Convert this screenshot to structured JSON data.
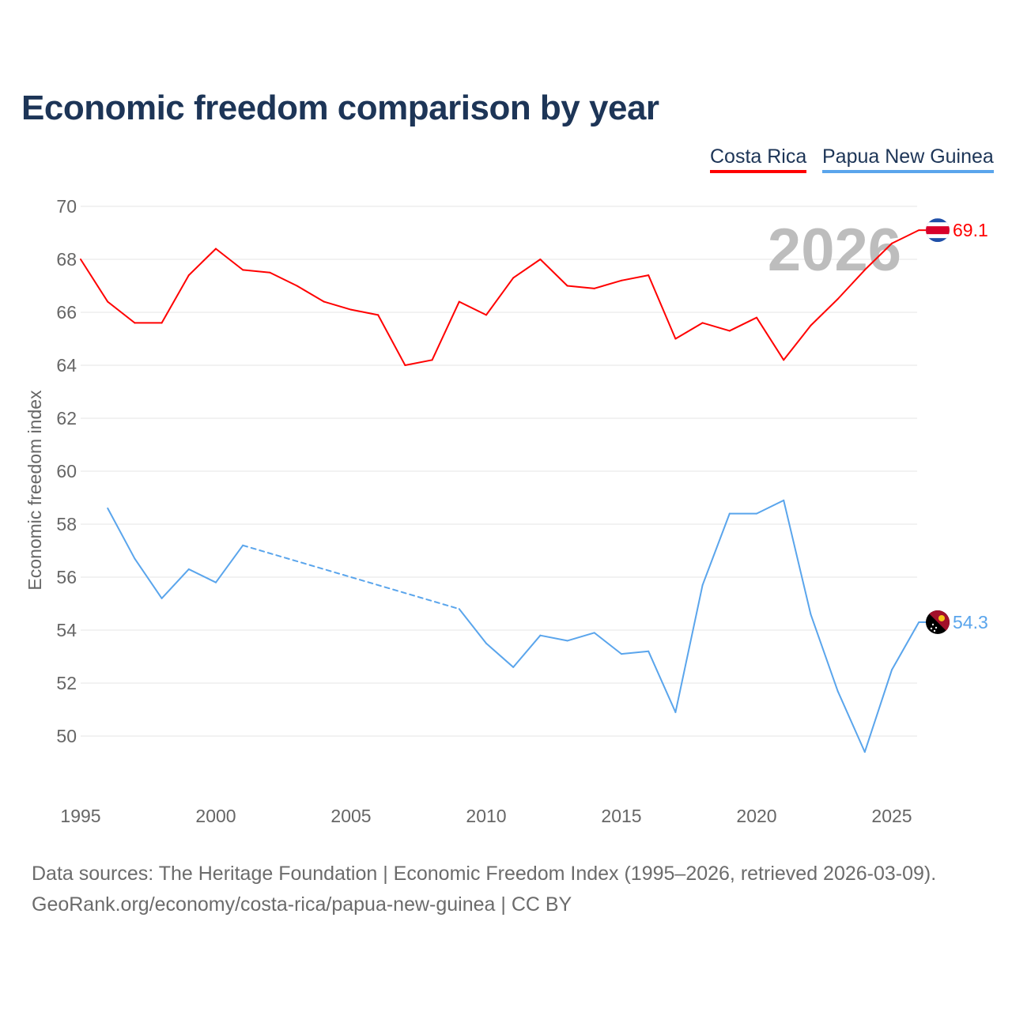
{
  "chart_data": {
    "type": "line",
    "title": "Economic freedom comparison by year",
    "xlabel": "",
    "ylabel": "Economic freedom index",
    "xlim": [
      1995,
      2026
    ],
    "ylim": [
      48,
      70
    ],
    "x_ticks": [
      1995,
      2000,
      2005,
      2010,
      2015,
      2020,
      2025
    ],
    "y_ticks": [
      50,
      52,
      54,
      56,
      58,
      60,
      62,
      64,
      66,
      68,
      70
    ],
    "grid": true,
    "legend_placement": "top-right",
    "watermark_year": "2026",
    "series": [
      {
        "name": "Costa Rica",
        "color": "#ff0000",
        "end_label": "69.1",
        "flag": "costa-rica",
        "x": [
          1995,
          1996,
          1997,
          1998,
          1999,
          2000,
          2001,
          2002,
          2003,
          2004,
          2005,
          2006,
          2007,
          2008,
          2009,
          2010,
          2011,
          2012,
          2013,
          2014,
          2015,
          2016,
          2017,
          2018,
          2019,
          2020,
          2021,
          2022,
          2023,
          2024,
          2025,
          2026
        ],
        "values": [
          68.0,
          66.4,
          65.6,
          65.6,
          67.4,
          68.4,
          67.6,
          67.5,
          67.0,
          66.4,
          66.1,
          65.9,
          64.0,
          64.2,
          66.4,
          65.9,
          67.3,
          68.0,
          67.0,
          66.9,
          67.2,
          67.4,
          65.0,
          65.6,
          65.3,
          65.8,
          64.2,
          65.5,
          66.5,
          67.6,
          68.6,
          69.1
        ]
      },
      {
        "name": "Papua New Guinea",
        "color": "#5aa5ec",
        "end_label": "54.3",
        "flag": "papua-new-guinea",
        "x": [
          1996,
          1997,
          1998,
          1999,
          2000,
          2001,
          2009,
          2010,
          2011,
          2012,
          2013,
          2014,
          2015,
          2016,
          2017,
          2018,
          2019,
          2020,
          2021,
          2022,
          2023,
          2024,
          2025,
          2026
        ],
        "values": [
          58.6,
          56.7,
          55.2,
          56.3,
          55.8,
          57.2,
          54.8,
          53.5,
          52.6,
          53.8,
          53.6,
          53.9,
          53.1,
          53.2,
          50.9,
          55.7,
          58.4,
          58.4,
          58.9,
          54.6,
          51.7,
          49.4,
          52.5,
          54.3
        ]
      }
    ]
  },
  "footer": {
    "line1": "Data sources: The Heritage Foundation | Economic Freedom Index (1995–2026, retrieved 2026-03-09).",
    "line2": "GeoRank.org/economy/costa-rica/papua-new-guinea | CC BY"
  }
}
